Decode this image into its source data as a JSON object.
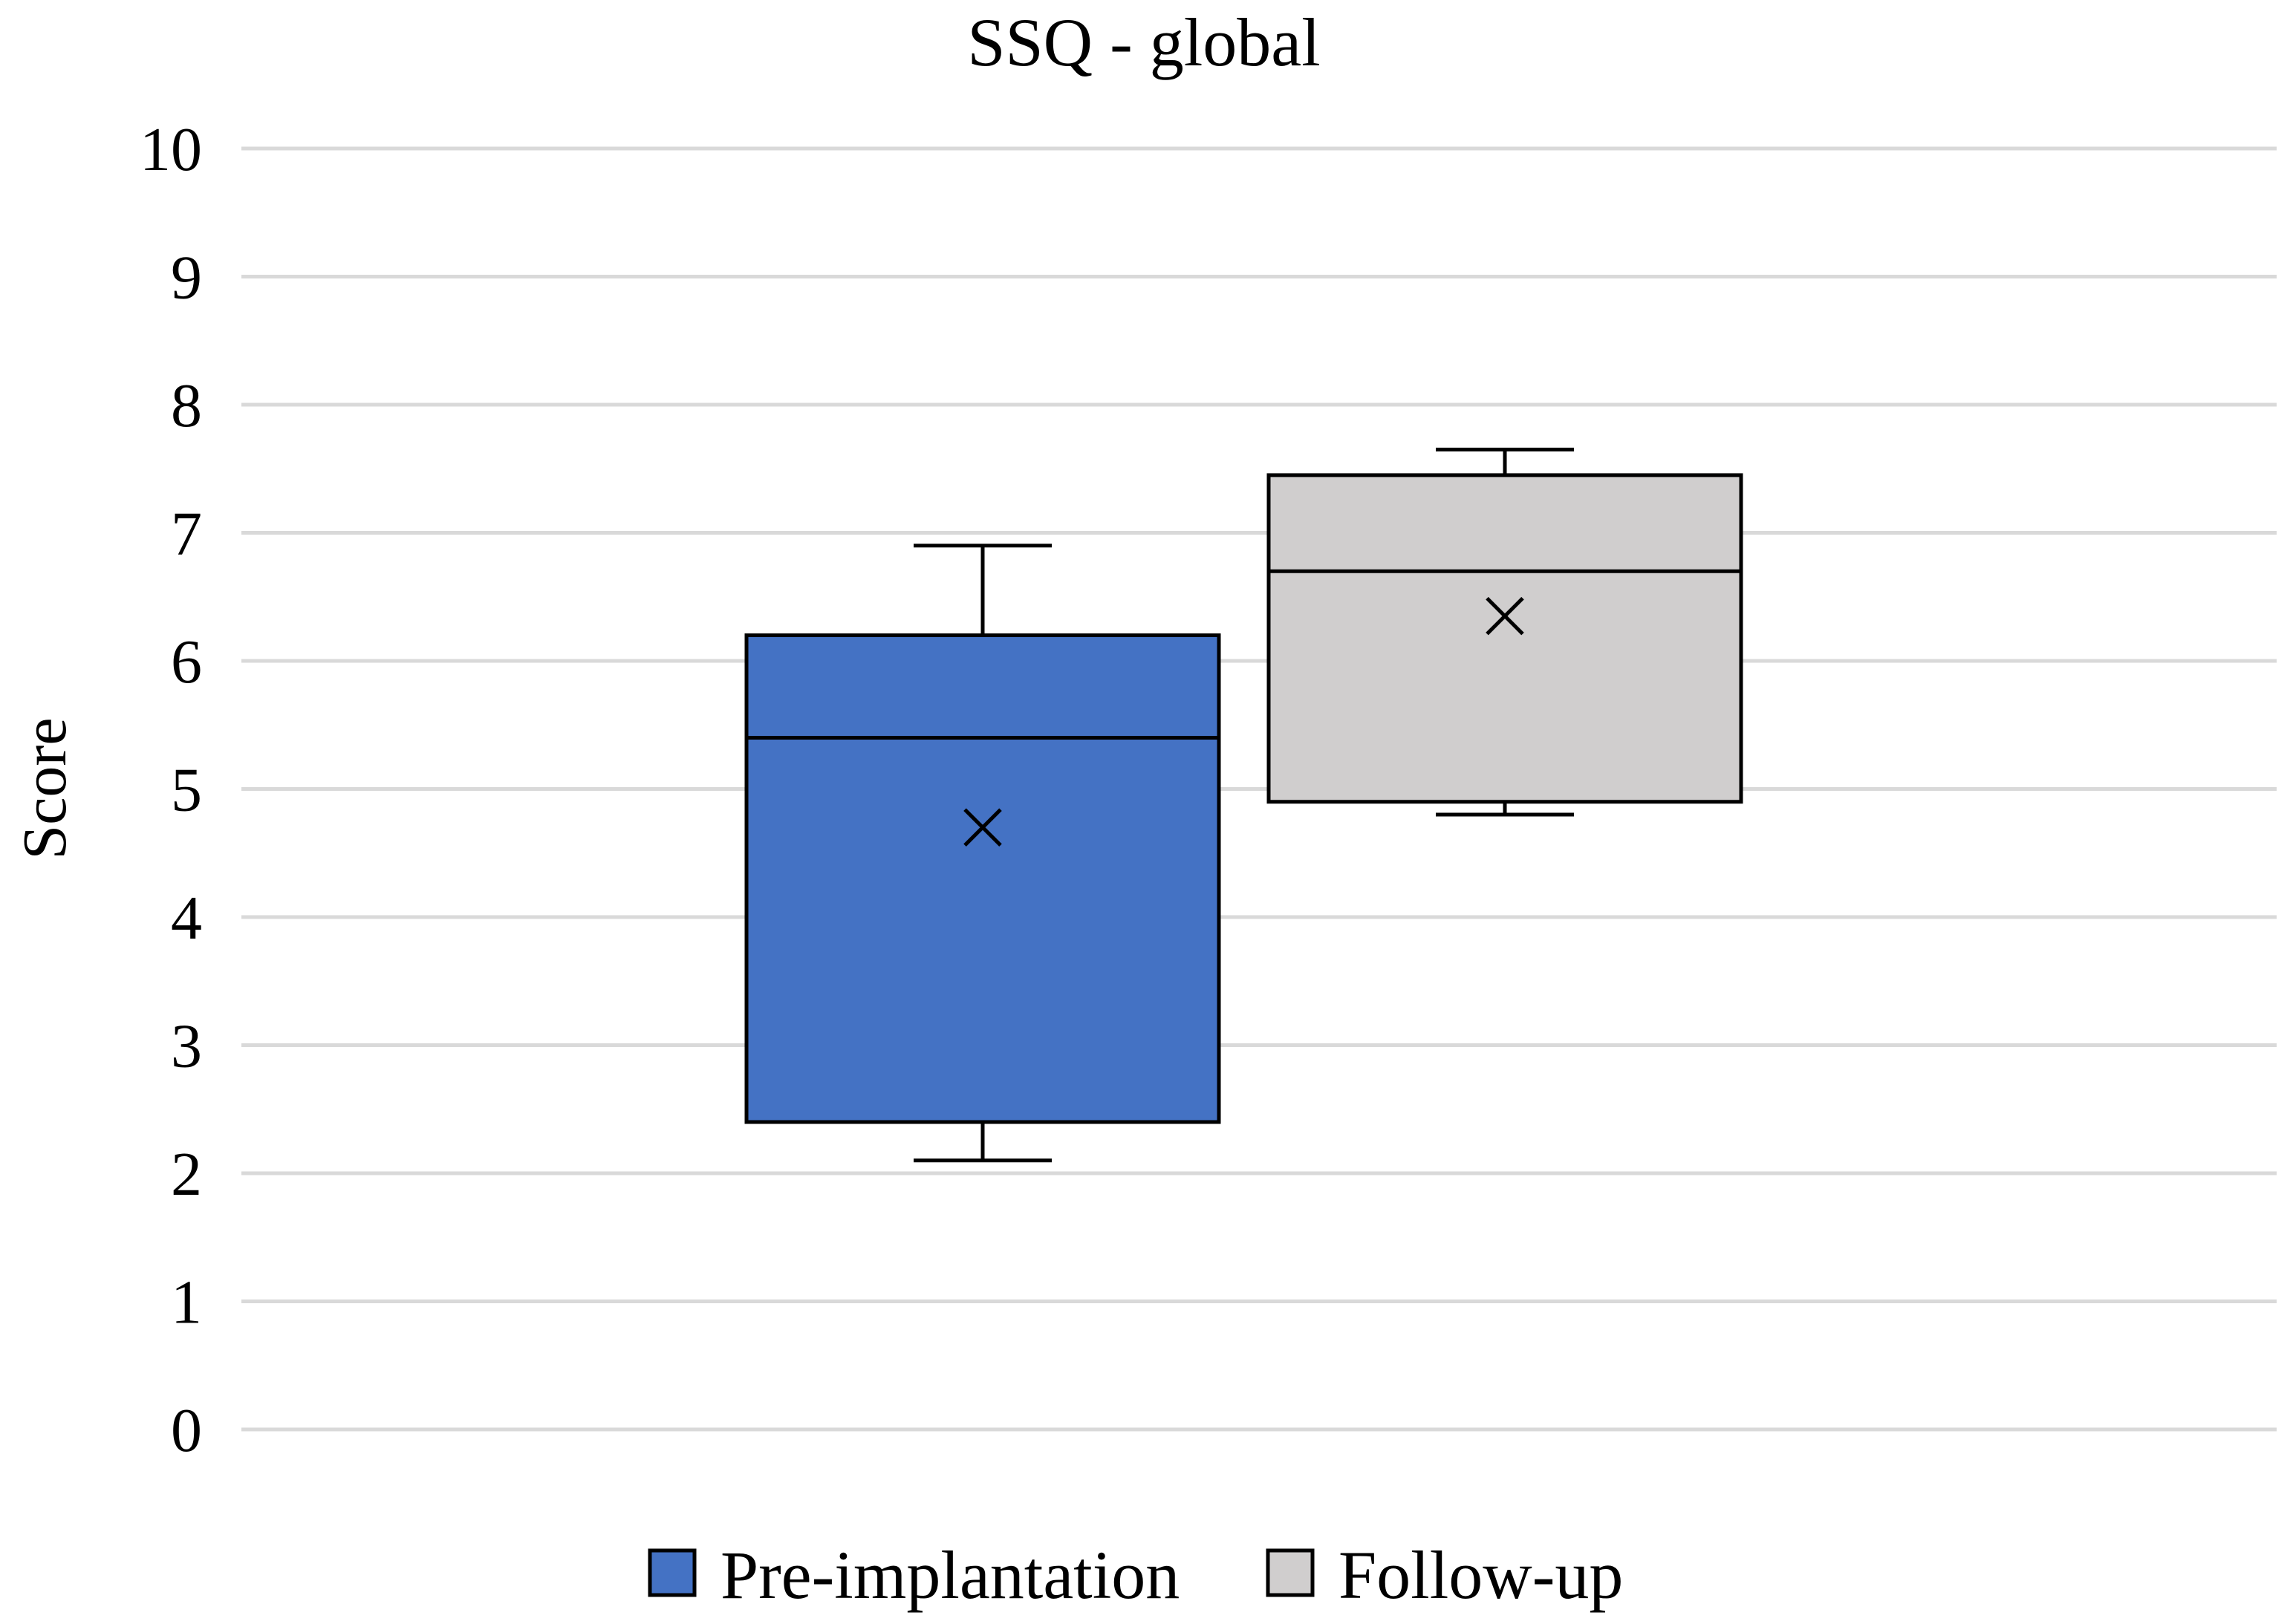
{
  "chart_data": {
    "type": "boxplot",
    "title": "SSQ - global",
    "ylabel": "Score",
    "xlabel": "",
    "ylim": [
      0,
      10
    ],
    "yticks": [
      0,
      1,
      2,
      3,
      4,
      5,
      6,
      7,
      8,
      9,
      10
    ],
    "grid": true,
    "legend_position": "bottom",
    "series": [
      {
        "name": "Pre-implantation",
        "color": "#4472c4",
        "min": 2.1,
        "q1": 2.4,
        "median": 5.4,
        "q3": 6.2,
        "max": 6.9,
        "mean": 4.7
      },
      {
        "name": "Follow-up",
        "color": "#d0cece",
        "min": 4.8,
        "q1": 4.9,
        "median": 6.7,
        "q3": 7.45,
        "max": 7.65,
        "mean": 6.35
      }
    ]
  }
}
